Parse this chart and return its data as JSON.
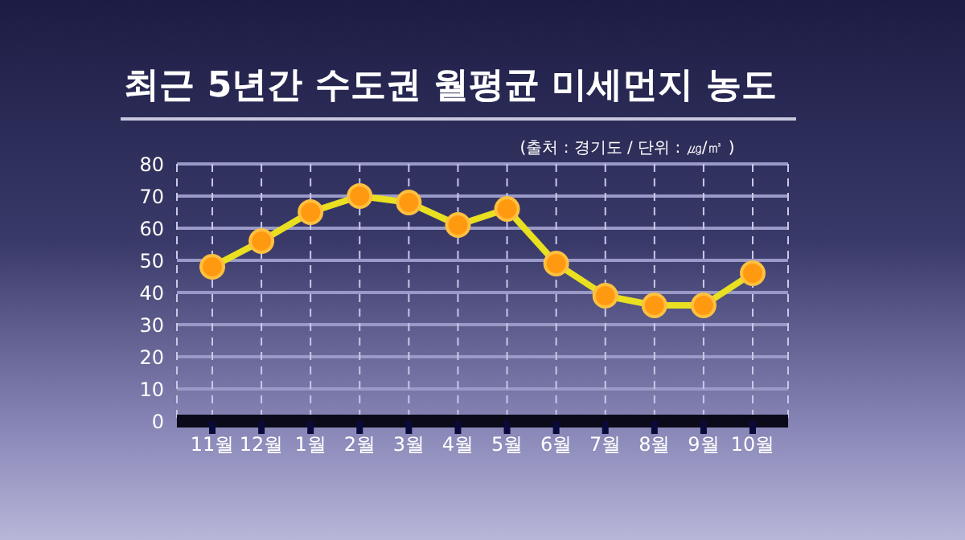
{
  "chart_data": {
    "type": "line",
    "title": "최근 5년간 수도권 월평균 미세먼지 농도",
    "annotations": [
      "(출처 : 경기도 / 단위 : ㎍/㎥ )"
    ],
    "categories": [
      "11월",
      "12월",
      "1월",
      "2월",
      "3월",
      "4월",
      "5월",
      "6월",
      "7월",
      "8월",
      "9월",
      "10월"
    ],
    "series": [
      {
        "color": "#e8e020",
        "colors": [
          "#ff9a10",
          "#ff9a10",
          "#ff9a10",
          "#ff9a10",
          "#ff9a10",
          "#ff9a10",
          "#ff9a10",
          "#ff9a10",
          "#ff9a10",
          "#ff9a10",
          "#ff9a10",
          "#ff9a10"
        ],
        "values": [
          48,
          56,
          65,
          70,
          68,
          61,
          66,
          49,
          39,
          36,
          36,
          46
        ]
      }
    ],
    "ylim": [
      0,
      80
    ],
    "yticks": [
      0,
      10,
      20,
      30,
      40,
      50,
      60,
      70,
      80
    ],
    "grid": true,
    "legend": false,
    "marker": "circle",
    "line_style": "solid"
  }
}
